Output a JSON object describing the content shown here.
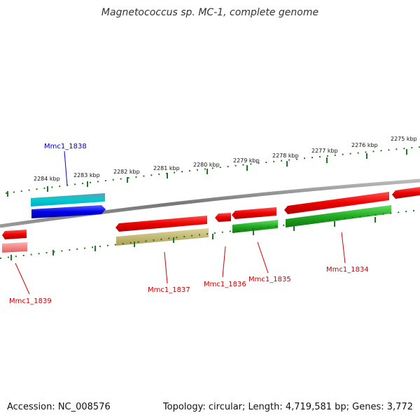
{
  "title": "Magnetococcus sp. MC-1, complete genome",
  "footer": {
    "accession": "Accession: NC_008576",
    "summary": "Topology: circular; Length: 4,719,581 bp; Genes: 3,772"
  },
  "ruler": {
    "labels": [
      "2284 kbp",
      "2283 kbp",
      "2282 kbp",
      "2281 kbp",
      "2280 kbp",
      "2279 kbp",
      "2278 kbp",
      "2277 kbp",
      "2276 kbp",
      "2275 kbp"
    ]
  },
  "genes": [
    {
      "name": "Mmc1_1838",
      "color": "#0000cc"
    },
    {
      "name": "Mmc1_1839",
      "color": "#cc0000"
    },
    {
      "name": "Mmc1_1837",
      "color": "#cc0000"
    },
    {
      "name": "Mmc1_1836",
      "color": "#cc0000"
    },
    {
      "name": "Mmc1_1835",
      "color": "#cc0000"
    },
    {
      "name": "Mmc1_1834",
      "color": "#cc0000"
    }
  ],
  "colors": {
    "forward_cds": "#ee0000",
    "forward_rna": "#1144ee",
    "reverse_cds": "#22aa22",
    "backbone": "#888888",
    "ticks": "#227722"
  }
}
